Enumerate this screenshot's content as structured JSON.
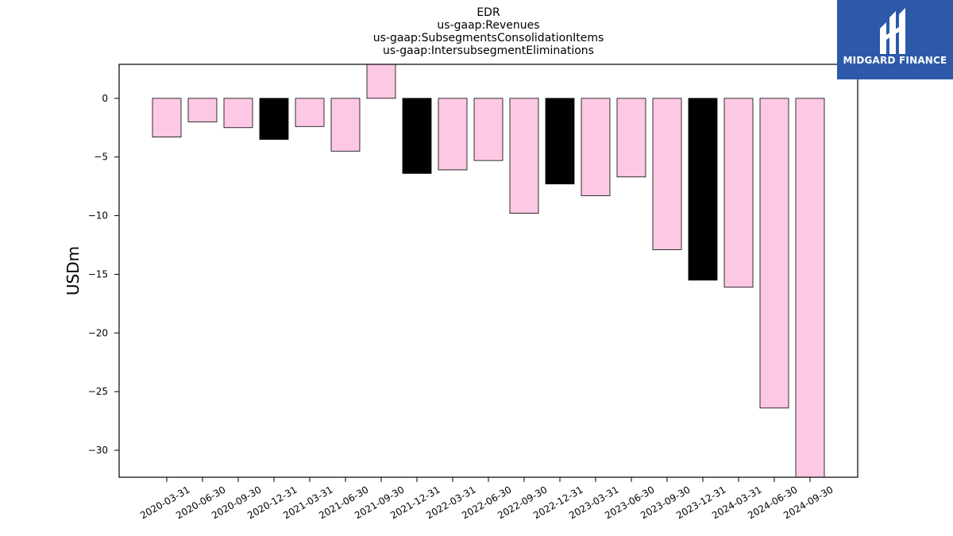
{
  "chart_data": {
    "type": "bar",
    "title": [
      "EDR",
      "us-gaap:Revenues",
      "us-gaap:SubsegmentsConsolidationItems",
      "us-gaap:IntersubsegmentEliminations"
    ],
    "xlabel": "",
    "ylabel": "USDm",
    "ylim": [
      -32.3,
      2.9
    ],
    "yticks": [
      0,
      -5,
      -10,
      -15,
      -20,
      -25,
      -30
    ],
    "categories": [
      "2020-03-31",
      "2020-06-30",
      "2020-09-30",
      "2020-12-31",
      "2021-03-31",
      "2021-06-30",
      "2021-09-30",
      "2021-12-31",
      "2022-03-31",
      "2022-06-30",
      "2022-09-30",
      "2022-12-31",
      "2023-03-31",
      "2023-06-30",
      "2023-09-30",
      "2023-12-31",
      "2024-03-31",
      "2024-06-30",
      "2024-09-30"
    ],
    "values": [
      -3.3,
      -2.0,
      -2.5,
      -3.5,
      -2.4,
      -4.5,
      2.9,
      -6.4,
      -6.1,
      -5.3,
      -9.8,
      -7.3,
      -8.3,
      -6.7,
      -12.9,
      -15.5,
      -16.1,
      -26.4,
      -32.3
    ],
    "colors": [
      "#fcc8e4",
      "#fcc8e4",
      "#fcc8e4",
      "#000000",
      "#fcc8e4",
      "#fcc8e4",
      "#fcc8e4",
      "#000000",
      "#fcc8e4",
      "#fcc8e4",
      "#fcc8e4",
      "#000000",
      "#fcc8e4",
      "#fcc8e4",
      "#fcc8e4",
      "#000000",
      "#fcc8e4",
      "#fcc8e4",
      "#fcc8e4"
    ],
    "grid": false,
    "legend": "none"
  },
  "logo": {
    "text": "MIDGARD FINANCE",
    "color": "#2c5aa9"
  }
}
